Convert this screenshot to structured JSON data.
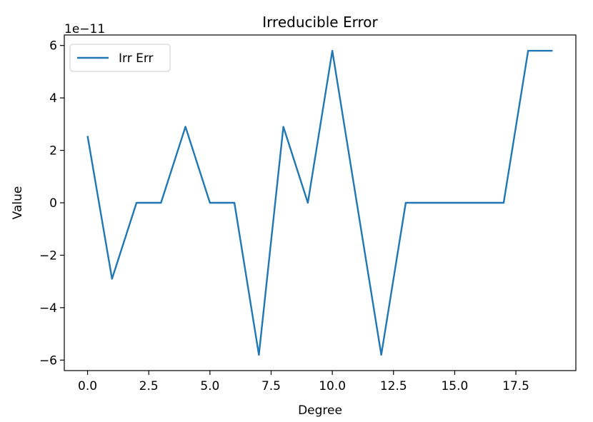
{
  "chart_data": {
    "type": "line",
    "title": "Irreducible Error",
    "xlabel": "Degree",
    "ylabel": "Value",
    "y_offset_label": "1e−11",
    "x": [
      0,
      1,
      2,
      3,
      4,
      5,
      6,
      7,
      8,
      9,
      10,
      11,
      12,
      13,
      14,
      15,
      16,
      17,
      18,
      19
    ],
    "series": [
      {
        "name": "Irr Err",
        "color": "#1f77b4",
        "values": [
          2.55,
          -2.9,
          0,
          0,
          2.9,
          0,
          0,
          -5.8,
          2.9,
          0,
          5.8,
          0,
          -5.8,
          0,
          0,
          0,
          0,
          0,
          5.8,
          5.8
        ]
      }
    ],
    "xlim": [
      -0.95,
      19.95
    ],
    "ylim": [
      -6.4,
      6.4
    ],
    "x_ticks": [
      0,
      2.5,
      5,
      7.5,
      10,
      12.5,
      15,
      17.5
    ],
    "x_tick_labels": [
      "0.0",
      "2.5",
      "5.0",
      "7.5",
      "10.0",
      "12.5",
      "15.0",
      "17.5"
    ],
    "y_ticks": [
      -6,
      -4,
      -2,
      0,
      2,
      4,
      6
    ],
    "y_tick_labels": [
      "−6",
      "−4",
      "−2",
      "0",
      "2",
      "4",
      "6"
    ],
    "grid": false,
    "legend_position": "top-left"
  }
}
